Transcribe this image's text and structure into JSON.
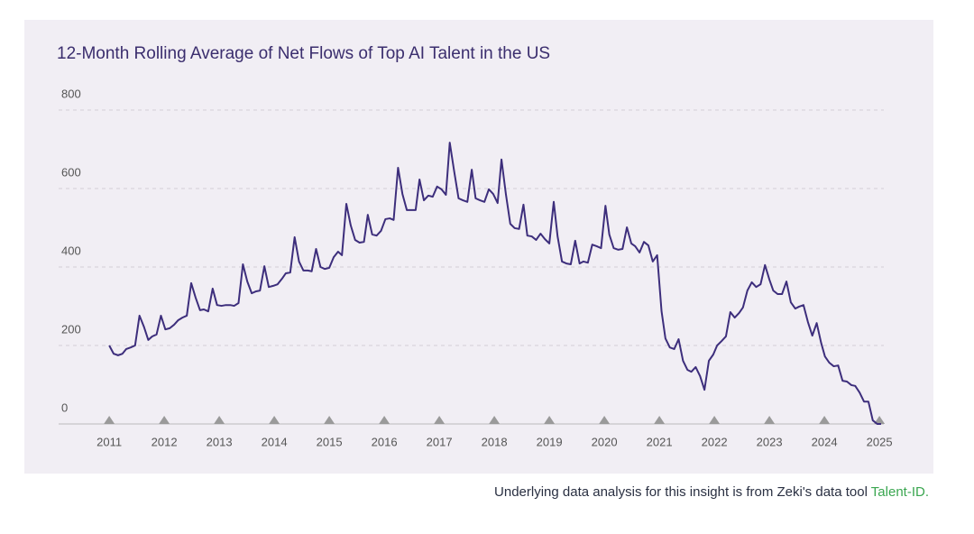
{
  "chart_data": {
    "type": "line",
    "title": "12-Month Rolling Average of Net Flows of Top AI Talent in the US",
    "source": "Underlying data analysis for this insight is from Zeki's data tool ",
    "source_link": "Talent-ID.",
    "xlim": [
      2010.08,
      2025.08
    ],
    "xticks": [
      2011,
      2012,
      2013,
      2014,
      2015,
      2016,
      2017,
      2018,
      2019,
      2020,
      2021,
      2022,
      2023,
      2024,
      2025
    ],
    "ylim": [
      0,
      800
    ],
    "yticks": [
      0,
      200,
      400,
      600,
      800
    ],
    "grid": true,
    "x": [
      2011.0,
      2011.08,
      2011.16,
      2011.24,
      2011.31,
      2011.39,
      2011.47,
      2011.55,
      2011.63,
      2011.71,
      2011.78,
      2011.86,
      2011.94,
      2012.02,
      2012.1,
      2012.18,
      2012.25,
      2012.33,
      2012.41,
      2012.49,
      2012.57,
      2012.65,
      2012.72,
      2012.8,
      2012.88,
      2012.96,
      2013.04,
      2013.12,
      2013.2,
      2013.27,
      2013.35,
      2013.43,
      2013.51,
      2013.59,
      2013.67,
      2013.74,
      2013.82,
      2013.9,
      2013.98,
      2014.06,
      2014.14,
      2014.21,
      2014.29,
      2014.37,
      2014.45,
      2014.53,
      2014.61,
      2014.68,
      2014.76,
      2014.84,
      2014.92,
      2015.0,
      2015.08,
      2015.16,
      2015.23,
      2015.31,
      2015.39,
      2015.47,
      2015.55,
      2015.63,
      2015.7,
      2015.78,
      2015.86,
      2015.94,
      2016.02,
      2016.1,
      2016.17,
      2016.25,
      2016.33,
      2016.41,
      2016.49,
      2016.57,
      2016.64,
      2016.72,
      2016.8,
      2016.88,
      2016.96,
      2017.04,
      2017.12,
      2017.19,
      2017.27,
      2017.35,
      2017.43,
      2017.51,
      2017.59,
      2017.66,
      2017.74,
      2017.82,
      2017.9,
      2017.98,
      2018.06,
      2018.13,
      2018.21,
      2018.29,
      2018.37,
      2018.45,
      2018.53,
      2018.6,
      2018.68,
      2018.76,
      2018.84,
      2018.92,
      2019.0,
      2019.08,
      2019.15,
      2019.23,
      2019.31,
      2019.39,
      2019.47,
      2019.55,
      2019.62,
      2019.7,
      2019.78,
      2019.86,
      2019.94,
      2020.02,
      2020.09,
      2020.17,
      2020.25,
      2020.33,
      2020.41,
      2020.49,
      2020.56,
      2020.64,
      2020.72,
      2020.8,
      2020.88,
      2020.96,
      2021.04,
      2021.11,
      2021.19,
      2021.27,
      2021.35,
      2021.43,
      2021.51,
      2021.58,
      2021.66,
      2021.74,
      2021.82,
      2021.9,
      2021.98,
      2022.05,
      2022.13,
      2022.21,
      2022.29,
      2022.37,
      2022.45,
      2022.52,
      2022.6,
      2022.68,
      2022.76,
      2022.84,
      2022.92,
      2023.0,
      2023.07,
      2023.15,
      2023.23,
      2023.31,
      2023.39,
      2023.47,
      2023.54,
      2023.62,
      2023.7,
      2023.78,
      2023.86,
      2023.94,
      2024.01,
      2024.09,
      2024.17,
      2024.25,
      2024.33,
      2024.41,
      2024.49,
      2024.56,
      2024.64,
      2024.72,
      2024.8,
      2024.88,
      2024.96,
      2025.03
    ],
    "series": [
      {
        "name": "Net flows",
        "color": "#3d2e7c",
        "values": [
          200,
          179,
          175,
          179,
          191,
          195,
          200,
          276,
          248,
          214,
          223,
          228,
          276,
          241,
          244,
          253,
          264,
          271,
          276,
          359,
          322,
          290,
          292,
          287,
          345,
          303,
          301,
          303,
          303,
          301,
          308,
          407,
          363,
          333,
          338,
          340,
          402,
          349,
          352,
          356,
          370,
          384,
          386,
          476,
          414,
          391,
          391,
          389,
          446,
          400,
          395,
          398,
          425,
          439,
          430,
          561,
          506,
          469,
          462,
          464,
          533,
          483,
          480,
          492,
          522,
          524,
          520,
          653,
          586,
          545,
          545,
          545,
          623,
          570,
          582,
          579,
          605,
          598,
          584,
          717,
          644,
          575,
          570,
          566,
          648,
          575,
          570,
          566,
          598,
          586,
          563,
          674,
          586,
          510,
          499,
          497,
          559,
          480,
          478,
          469,
          485,
          471,
          460,
          566,
          478,
          414,
          409,
          407,
          467,
          409,
          414,
          411,
          457,
          453,
          448,
          556,
          483,
          448,
          444,
          446,
          501,
          460,
          453,
          437,
          464,
          455,
          414,
          430,
          287,
          218,
          195,
          191,
          216,
          161,
          138,
          133,
          145,
          122,
          87,
          161,
          177,
          200,
          211,
          223,
          285,
          271,
          283,
          297,
          340,
          361,
          349,
          356,
          405,
          368,
          340,
          331,
          331,
          363,
          310,
          294,
          299,
          303,
          260,
          225,
          257,
          207,
          172,
          156,
          147,
          149,
          110,
          108,
          99,
          97,
          80,
          57,
          57,
          9,
          0,
          0
        ]
      }
    ]
  }
}
